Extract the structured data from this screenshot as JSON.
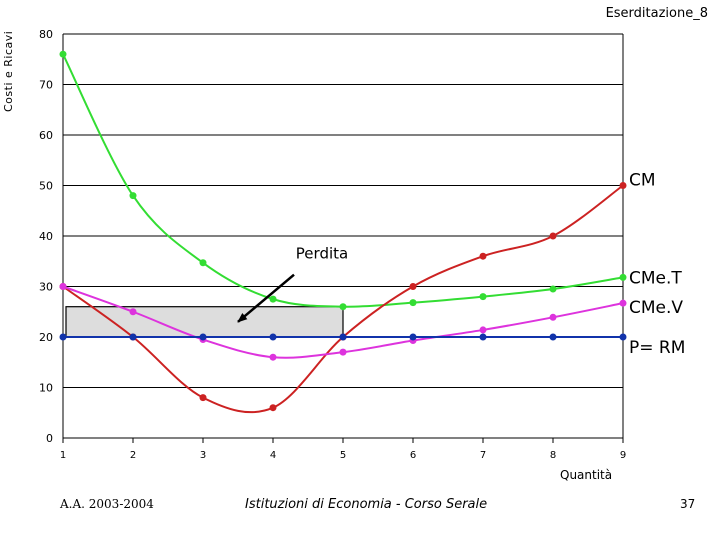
{
  "slide": {
    "title": "Eserditazione_8",
    "footer_left": "A.A. 2003-2004",
    "footer_center": "Istituzioni di Economia  -  Corso Serale",
    "page_number": "37"
  },
  "colors": {
    "green": "#33dd33",
    "red": "#cc2222",
    "magenta": "#dd33dd",
    "blue": "#1133aa",
    "gridline": "#000000",
    "loss_area": "#dddddd"
  },
  "chart_data": {
    "type": "line",
    "xlabel": "Quantità",
    "ylabel": "Costi e Ricavi",
    "xlim": [
      1,
      9
    ],
    "ylim": [
      0,
      80
    ],
    "x_ticks": [
      1,
      2,
      3,
      4,
      5,
      6,
      7,
      8,
      9
    ],
    "y_ticks": [
      0,
      10,
      20,
      30,
      40,
      50,
      60,
      70,
      80
    ],
    "grid": "horizontal",
    "series": [
      {
        "name": "CMe.T",
        "color": "green",
        "x": [
          1,
          2,
          3,
          4,
          5,
          6,
          7,
          8,
          9
        ],
        "y": [
          76,
          48,
          34.7,
          27.5,
          26,
          26.8,
          28,
          29.5,
          31.8
        ]
      },
      {
        "name": "CM",
        "color": "red",
        "x": [
          1,
          2,
          3,
          4,
          5,
          6,
          7,
          8,
          9
        ],
        "y": [
          30,
          20,
          8,
          6,
          20,
          30,
          36,
          40,
          50
        ]
      },
      {
        "name": "CMe.V",
        "color": "magenta",
        "x": [
          1,
          2,
          3,
          4,
          5,
          6,
          7,
          8,
          9
        ],
        "y": [
          30,
          25,
          19.5,
          16,
          17,
          19.3,
          21.4,
          23.9,
          26.7
        ]
      },
      {
        "name": "P= RM",
        "color": "blue",
        "x": [
          1,
          2,
          3,
          4,
          5,
          6,
          7,
          8,
          9
        ],
        "y": [
          20,
          20,
          20,
          20,
          20,
          20,
          20,
          20,
          20
        ]
      }
    ],
    "loss_area": {
      "x": [
        1,
        5
      ],
      "y": [
        20,
        26
      ]
    },
    "annotations": [
      {
        "text": "Perdita",
        "x": 4.7,
        "y": 35.5,
        "arrow_to": [
          3.5,
          23
        ]
      }
    ]
  }
}
